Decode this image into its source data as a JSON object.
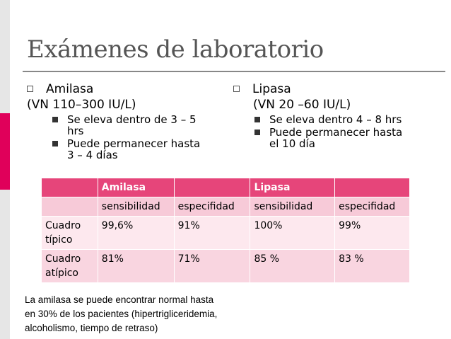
{
  "title": "Exámenes de laboratorio",
  "left": {
    "heading": "Amilasa",
    "range": "(VN 110–300 IU/L)",
    "bullets": [
      "Se eleva dentro de 3 – 5",
      "hrs",
      "Puede permanecer hasta",
      "3 – 4 días"
    ]
  },
  "right": {
    "heading": "Lipasa",
    "range": "(VN 20 –60 IU/L)",
    "bullets": [
      "Se eleva dentro 4 – 8 hrs",
      "Puede permanecer hasta",
      "el 10 día"
    ]
  },
  "table": {
    "header": [
      "",
      "Amilasa",
      "",
      "Lipasa",
      ""
    ],
    "subheader": [
      "",
      "sensibilidad",
      "especifidad",
      "sensibilidad",
      "especifidad"
    ],
    "rows": [
      [
        "Cuadro",
        "típico",
        "99,6%",
        "91%",
        "100%",
        "99%"
      ],
      [
        "Cuadro",
        "atípico",
        "81%",
        "71%",
        "85 %",
        "83 %"
      ]
    ]
  },
  "note": [
    "La amilasa se puede encontrar normal hasta",
    "en 30% de los pacientes (hipertrigliceridemia,",
    "alcoholismo, tiempo de retraso)"
  ]
}
